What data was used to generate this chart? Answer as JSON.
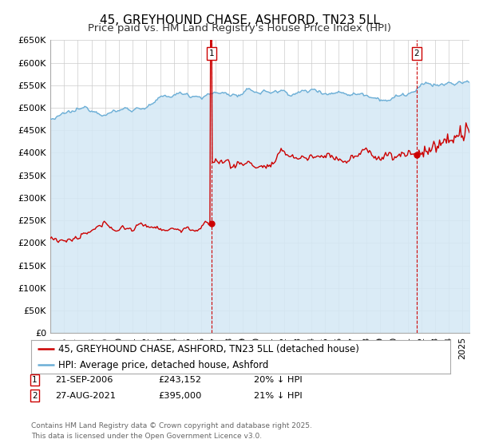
{
  "title": "45, GREYHOUND CHASE, ASHFORD, TN23 5LL",
  "subtitle": "Price paid vs. HM Land Registry's House Price Index (HPI)",
  "ylim": [
    0,
    650000
  ],
  "yticks": [
    0,
    50000,
    100000,
    150000,
    200000,
    250000,
    300000,
    350000,
    400000,
    450000,
    500000,
    550000,
    600000,
    650000
  ],
  "ytick_labels": [
    "£0",
    "£50K",
    "£100K",
    "£150K",
    "£200K",
    "£250K",
    "£300K",
    "£350K",
    "£400K",
    "£450K",
    "£500K",
    "£550K",
    "£600K",
    "£650K"
  ],
  "xlim_start": 1995.0,
  "xlim_end": 2025.5,
  "hpi_color": "#6baed6",
  "hpi_fill_color": "#d4e8f5",
  "price_color": "#cc0000",
  "vline_color": "#cc0000",
  "grid_color": "#cccccc",
  "background_color": "#ffffff",
  "transaction1_year": 2006.72,
  "transaction2_year": 2021.65,
  "transaction1_price": 243152,
  "transaction2_price": 395000,
  "legend_label_red": "45, GREYHOUND CHASE, ASHFORD, TN23 5LL (detached house)",
  "legend_label_blue": "HPI: Average price, detached house, Ashford",
  "title_fontsize": 11,
  "subtitle_fontsize": 9.5,
  "tick_fontsize": 8,
  "legend_fontsize": 8.5
}
